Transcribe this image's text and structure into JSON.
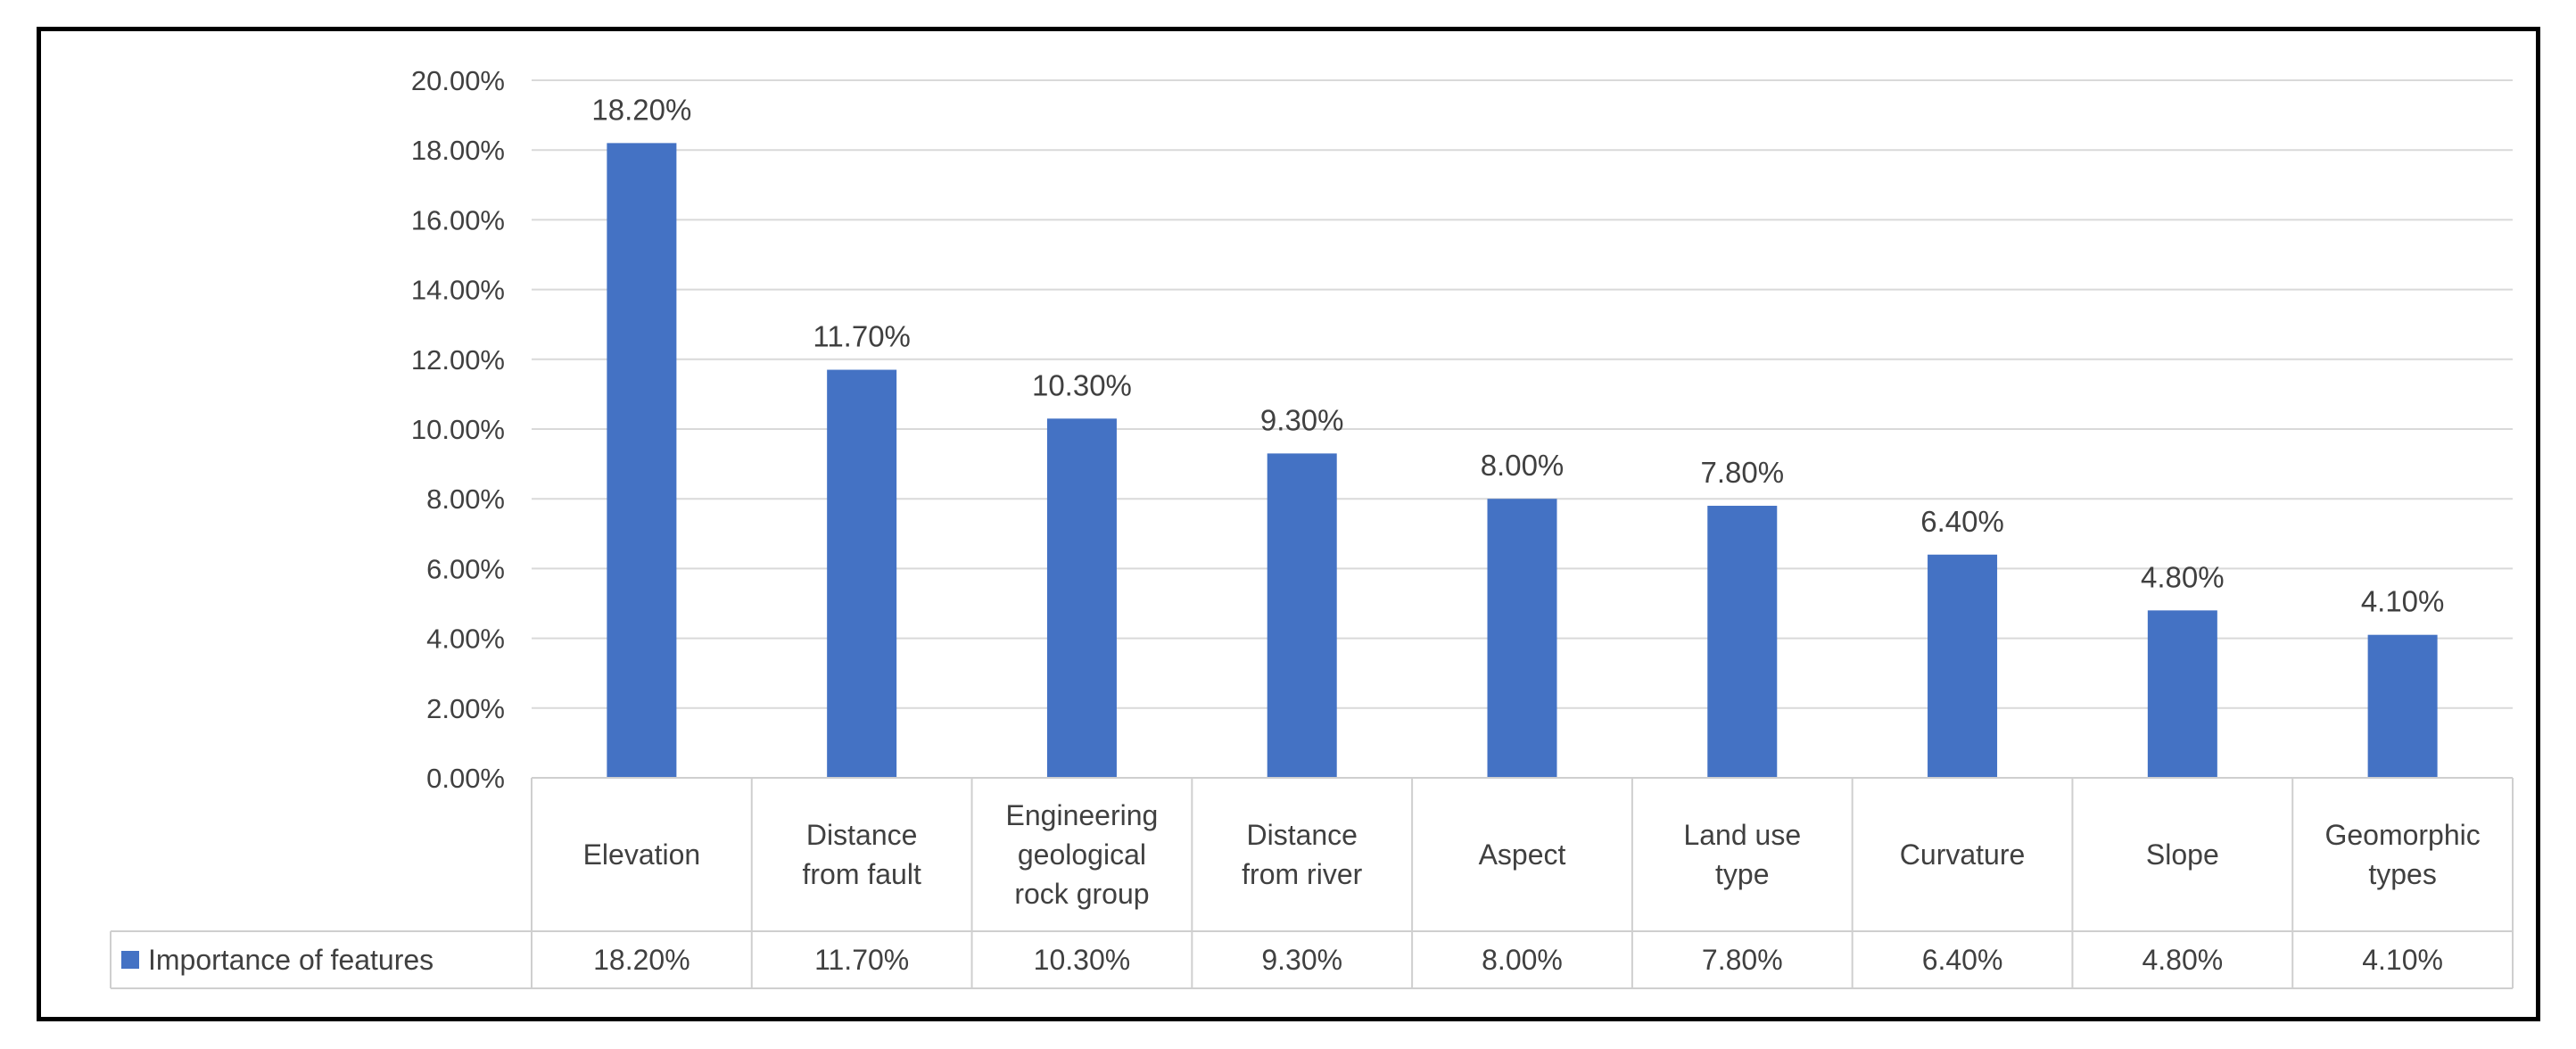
{
  "chart_data": {
    "type": "bar",
    "categories": [
      [
        "Elevation"
      ],
      [
        "Distance",
        "from fault"
      ],
      [
        "Engineering",
        "geological",
        "rock group"
      ],
      [
        "Distance",
        "from river"
      ],
      [
        "Aspect"
      ],
      [
        "Land use",
        "type"
      ],
      [
        "Curvature"
      ],
      [
        "Slope"
      ],
      [
        "Geomorphic",
        "types"
      ]
    ],
    "series": [
      {
        "name": "Importance of features",
        "values": [
          18.2,
          11.7,
          10.3,
          9.3,
          8.0,
          7.8,
          6.4,
          4.8,
          4.1
        ],
        "value_labels": [
          "18.20%",
          "11.70%",
          "10.30%",
          "9.30%",
          "8.00%",
          "7.80%",
          "6.40%",
          "4.80%",
          "4.10%"
        ],
        "color": "#4472C4"
      }
    ],
    "ylim": [
      0,
      20
    ],
    "yticks": [
      "0.00%",
      "2.00%",
      "4.00%",
      "6.00%",
      "8.00%",
      "10.00%",
      "12.00%",
      "14.00%",
      "16.00%",
      "18.00%",
      "20.00%"
    ],
    "grid": true,
    "data_table": true,
    "legend_position": "in data table"
  }
}
